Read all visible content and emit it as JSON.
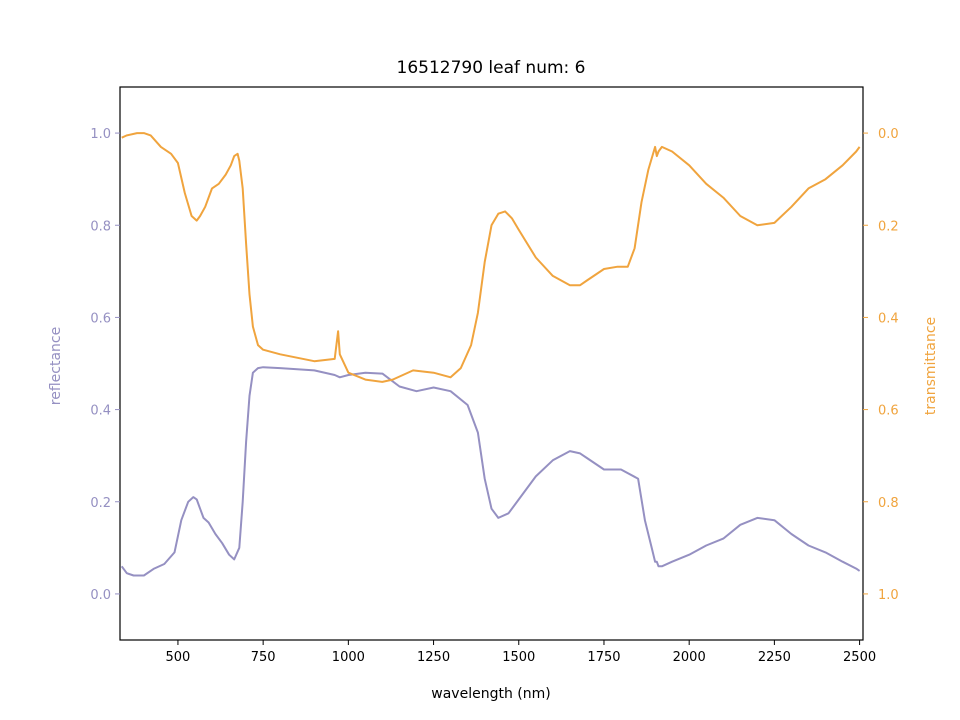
{
  "chart_data": {
    "type": "line",
    "title": "16512790 leaf num: 6",
    "xlabel": "wavelength (nm)",
    "ylabel_left": "reflectance",
    "ylabel_right": "transmittance",
    "xlim": [
      330,
      2510
    ],
    "ylim_left": [
      -0.1,
      1.1
    ],
    "ylim_right_inverted": [
      1.1,
      -0.1
    ],
    "x_ticks": [
      500,
      750,
      1000,
      1250,
      1500,
      1750,
      2000,
      2250,
      2500
    ],
    "y_left_ticks": [
      0.0,
      0.2,
      0.4,
      0.6,
      0.8,
      1.0
    ],
    "y_right_ticks": [
      0.0,
      0.2,
      0.4,
      0.6,
      0.8,
      1.0
    ],
    "x_tick_labels": [
      "500",
      "750",
      "1000",
      "1250",
      "1500",
      "1750",
      "2000",
      "2250",
      "2500"
    ],
    "y_left_tick_labels": [
      "0.0",
      "0.2",
      "0.4",
      "0.6",
      "0.8",
      "1.0"
    ],
    "y_right_tick_labels": [
      "0.0",
      "0.2",
      "0.4",
      "0.6",
      "0.8",
      "1.0"
    ],
    "grid": false,
    "colors": {
      "reflectance": "#9590c2",
      "transmittance": "#f0a43e",
      "axes": "#000000"
    },
    "series": [
      {
        "name": "reflectance",
        "axis": "left",
        "x": [
          335,
          350,
          370,
          400,
          430,
          460,
          490,
          510,
          530,
          545,
          555,
          565,
          575,
          590,
          610,
          630,
          650,
          665,
          680,
          690,
          700,
          710,
          720,
          735,
          750,
          800,
          900,
          960,
          975,
          1000,
          1050,
          1100,
          1150,
          1200,
          1250,
          1300,
          1350,
          1380,
          1400,
          1420,
          1440,
          1470,
          1500,
          1550,
          1600,
          1650,
          1680,
          1700,
          1750,
          1800,
          1850,
          1870,
          1890,
          1900,
          1905,
          1910,
          1920,
          1950,
          2000,
          2050,
          2100,
          2150,
          2200,
          2250,
          2300,
          2350,
          2400,
          2450,
          2490,
          2500
        ],
        "y": [
          0.06,
          0.045,
          0.04,
          0.04,
          0.055,
          0.065,
          0.09,
          0.16,
          0.2,
          0.21,
          0.205,
          0.185,
          0.165,
          0.155,
          0.13,
          0.11,
          0.085,
          0.075,
          0.1,
          0.2,
          0.33,
          0.43,
          0.48,
          0.49,
          0.492,
          0.49,
          0.485,
          0.475,
          0.47,
          0.475,
          0.48,
          0.478,
          0.45,
          0.44,
          0.448,
          0.44,
          0.41,
          0.35,
          0.25,
          0.185,
          0.165,
          0.175,
          0.205,
          0.255,
          0.29,
          0.31,
          0.305,
          0.295,
          0.27,
          0.27,
          0.25,
          0.16,
          0.1,
          0.07,
          0.07,
          0.06,
          0.06,
          0.07,
          0.085,
          0.105,
          0.12,
          0.15,
          0.165,
          0.16,
          0.13,
          0.105,
          0.09,
          0.07,
          0.055,
          0.05
        ]
      },
      {
        "name": "transmittance",
        "axis": "right",
        "x": [
          335,
          350,
          380,
          400,
          420,
          450,
          480,
          500,
          520,
          540,
          555,
          565,
          580,
          600,
          620,
          640,
          655,
          665,
          675,
          680,
          690,
          700,
          710,
          720,
          735,
          750,
          800,
          900,
          960,
          970,
          975,
          1000,
          1050,
          1100,
          1130,
          1160,
          1190,
          1250,
          1300,
          1330,
          1360,
          1380,
          1400,
          1420,
          1440,
          1460,
          1480,
          1500,
          1550,
          1600,
          1650,
          1680,
          1700,
          1750,
          1790,
          1820,
          1840,
          1860,
          1880,
          1900,
          1905,
          1910,
          1920,
          1950,
          2000,
          2050,
          2100,
          2150,
          2200,
          2250,
          2300,
          2350,
          2400,
          2450,
          2490,
          2500
        ],
        "y": [
          0.01,
          0.005,
          0.0,
          0.0,
          0.005,
          0.03,
          0.045,
          0.065,
          0.13,
          0.18,
          0.19,
          0.18,
          0.16,
          0.12,
          0.11,
          0.09,
          0.07,
          0.05,
          0.045,
          0.06,
          0.12,
          0.24,
          0.35,
          0.42,
          0.46,
          0.47,
          0.48,
          0.495,
          0.49,
          0.43,
          0.48,
          0.52,
          0.535,
          0.54,
          0.535,
          0.525,
          0.515,
          0.52,
          0.53,
          0.51,
          0.46,
          0.39,
          0.28,
          0.2,
          0.175,
          0.17,
          0.185,
          0.21,
          0.27,
          0.31,
          0.33,
          0.33,
          0.32,
          0.295,
          0.29,
          0.29,
          0.25,
          0.15,
          0.08,
          0.03,
          0.05,
          0.04,
          0.03,
          0.04,
          0.07,
          0.11,
          0.14,
          0.18,
          0.2,
          0.195,
          0.16,
          0.12,
          0.1,
          0.07,
          0.04,
          0.03
        ]
      }
    ]
  }
}
